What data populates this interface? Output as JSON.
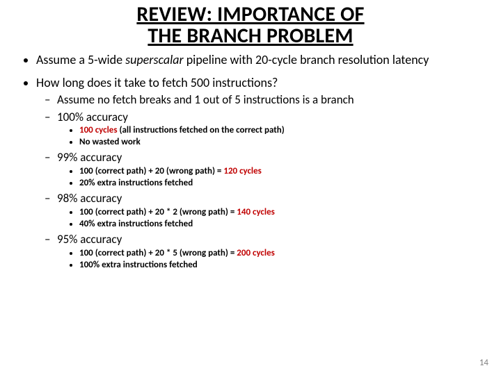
{
  "title_line1": "REVIEW: IMPORTANCE OF",
  "title_line2": "THE BRANCH PROBLEM",
  "colors": {
    "text": "#000000",
    "highlight": "#c00000",
    "pagenum": "#808080",
    "background": "#ffffff"
  },
  "fonts": {
    "title_size": 30,
    "l1_size": 18,
    "l2_size": 17,
    "l3_size": 13
  },
  "bullets": {
    "b1_pre": "Assume a 5-wide ",
    "b1_em": "superscalar",
    "b1_post": " pipeline with 20-cycle branch resolution latency",
    "b2": "How long does it take to fetch 500 instructions?",
    "b2_sub0": "Assume no fetch breaks and 1 out of 5 instructions is a branch",
    "acc100": {
      "label": "100% accuracy",
      "line1_a": "100 cycles",
      "line1_b": " (all instructions fetched on the correct path)",
      "line2": "No wasted work"
    },
    "acc99": {
      "label": "99% accuracy",
      "line1_a": "100 (correct path) + 20 (wrong path) = ",
      "line1_b": "120 cycles",
      "line2": "20% extra instructions fetched"
    },
    "acc98": {
      "label": "98% accuracy",
      "line1_a": "100 (correct path) + 20 * 2 (wrong path) = ",
      "line1_b": "140 cycles",
      "line2": "40% extra instructions fetched"
    },
    "acc95": {
      "label": "95% accuracy",
      "line1_a": "100 (correct path) + 20 * 5 (wrong path) = ",
      "line1_b": "200 cycles",
      "line2": "100% extra instructions fetched"
    }
  },
  "page_number": "14"
}
